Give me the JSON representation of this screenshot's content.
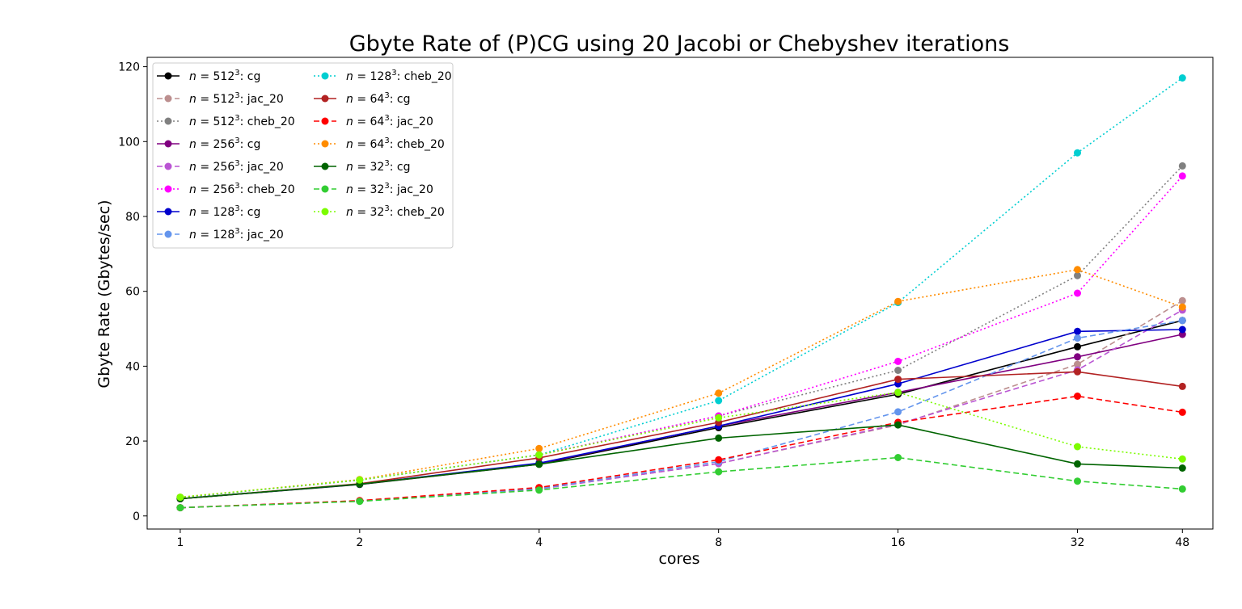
{
  "chart_data": {
    "type": "line",
    "title": "Gbyte Rate of (P)CG using 20 Jacobi or Chebyshev iterations",
    "xlabel": "cores",
    "ylabel": "Gbyte Rate (Gbytes/sec)",
    "x_scale": "log2",
    "x": [
      1,
      2,
      4,
      8,
      16,
      32,
      48
    ],
    "x_tick_labels": [
      "1",
      "2",
      "4",
      "8",
      "16",
      "32",
      "48"
    ],
    "xlim": [
      0.88,
      54
    ],
    "ylim": [
      -3.5,
      122.5
    ],
    "y_ticks": [
      0,
      20,
      40,
      60,
      80,
      100,
      120
    ],
    "grid": false,
    "legend_position": "top-left",
    "legend_columns": 2,
    "series": [
      {
        "name": "n = 512³: cg",
        "n": "512",
        "method": "cg",
        "color": "#000000",
        "linestyle": "solid",
        "values": [
          4.6,
          8.4,
          13.8,
          23.6,
          32.5,
          45.2,
          52.2
        ]
      },
      {
        "name": "n = 512³: jac_20",
        "n": "512",
        "method": "jac_20",
        "color": "#bc8f8f",
        "linestyle": "dashed",
        "values": [
          2.2,
          4.0,
          7.2,
          14.0,
          24.3,
          40.5,
          57.5
        ]
      },
      {
        "name": "n = 512³: cheb_20",
        "n": "512",
        "method": "cheb_20",
        "color": "#808080",
        "linestyle": "dotted",
        "values": [
          4.9,
          9.6,
          16.3,
          26.7,
          38.9,
          64.2,
          93.5
        ]
      },
      {
        "name": "n = 256³: cg",
        "n": "256",
        "method": "cg",
        "color": "#800080",
        "linestyle": "solid",
        "values": [
          4.6,
          8.5,
          14.0,
          24.0,
          33.0,
          42.5,
          48.5
        ]
      },
      {
        "name": "n = 256³: jac_20",
        "n": "256",
        "method": "jac_20",
        "color": "#ba55d3",
        "linestyle": "dashed",
        "values": [
          2.2,
          4.0,
          7.2,
          14.0,
          24.5,
          39.0,
          55.0
        ]
      },
      {
        "name": "n = 256³: cheb_20",
        "n": "256",
        "method": "cheb_20",
        "color": "#ff00ff",
        "linestyle": "dotted",
        "values": [
          4.9,
          9.6,
          16.3,
          26.7,
          41.3,
          59.5,
          90.8
        ]
      },
      {
        "name": "n = 128³: cg",
        "n": "128",
        "method": "cg",
        "color": "#0000cd",
        "linestyle": "solid",
        "values": [
          4.6,
          8.5,
          14.1,
          24.0,
          35.3,
          49.3,
          49.8
        ]
      },
      {
        "name": "n = 128³: jac_20",
        "n": "128",
        "method": "jac_20",
        "color": "#6495ed",
        "linestyle": "dashed",
        "values": [
          2.2,
          4.0,
          7.3,
          14.5,
          27.8,
          47.5,
          52.2
        ]
      },
      {
        "name": "n = 128³: cheb_20",
        "n": "128",
        "method": "cheb_20",
        "color": "#00ced1",
        "linestyle": "dotted",
        "values": [
          4.9,
          9.6,
          16.3,
          30.8,
          57.0,
          97.0,
          117.0
        ]
      },
      {
        "name": "n = 64³: cg",
        "n": "64",
        "method": "cg",
        "color": "#b22222",
        "linestyle": "solid",
        "values": [
          4.6,
          8.6,
          15.5,
          25.0,
          36.5,
          38.5,
          34.6
        ]
      },
      {
        "name": "n = 64³: jac_20",
        "n": "64",
        "method": "jac_20",
        "color": "#ff0000",
        "linestyle": "dashed",
        "values": [
          2.2,
          4.1,
          7.6,
          15.0,
          25.0,
          32.0,
          27.7
        ]
      },
      {
        "name": "n = 64³: cheb_20",
        "n": "64",
        "method": "cheb_20",
        "color": "#ff8c00",
        "linestyle": "dotted",
        "values": [
          5.0,
          9.7,
          18.0,
          32.8,
          57.3,
          65.8,
          55.8
        ]
      },
      {
        "name": "n = 32³: cg",
        "n": "32",
        "method": "cg",
        "color": "#006400",
        "linestyle": "solid",
        "values": [
          4.6,
          8.5,
          13.8,
          20.8,
          24.3,
          13.9,
          12.8
        ]
      },
      {
        "name": "n = 32³: jac_20",
        "n": "32",
        "method": "jac_20",
        "color": "#32cd32",
        "linestyle": "dashed",
        "values": [
          2.2,
          3.9,
          6.9,
          11.8,
          15.6,
          9.3,
          7.2
        ]
      },
      {
        "name": "n = 32³: cheb_20",
        "n": "32",
        "method": "cheb_20",
        "color": "#7cfc00",
        "linestyle": "dotted",
        "values": [
          5.0,
          9.6,
          16.3,
          26.2,
          33.0,
          18.5,
          15.2
        ]
      }
    ]
  }
}
